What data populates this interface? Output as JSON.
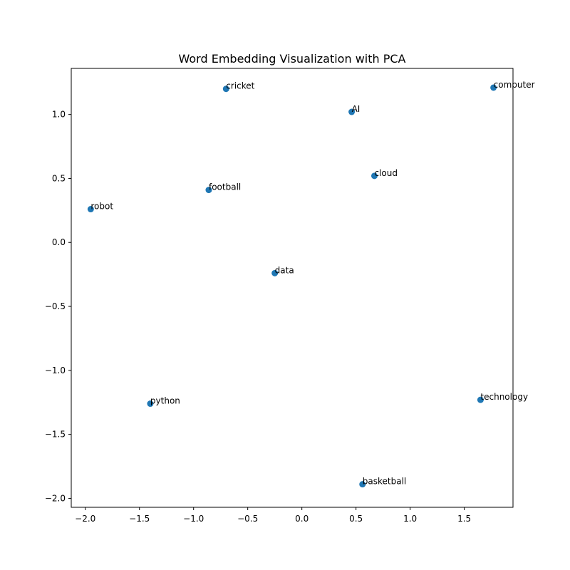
{
  "chart_data": {
    "type": "scatter",
    "title": "Word Embedding Visualization with PCA",
    "xlabel": "",
    "ylabel": "",
    "xlim": [
      -2.13,
      1.95
    ],
    "ylim": [
      -2.07,
      1.36
    ],
    "grid": false,
    "marker_color": "#1f77b4",
    "xticks": [
      {
        "value": -2.0,
        "label": "−2.0"
      },
      {
        "value": -1.5,
        "label": "−1.5"
      },
      {
        "value": -1.0,
        "label": "−1.0"
      },
      {
        "value": -0.5,
        "label": "−0.5"
      },
      {
        "value": 0.0,
        "label": "0.0"
      },
      {
        "value": 0.5,
        "label": "0.5"
      },
      {
        "value": 1.0,
        "label": "1.0"
      },
      {
        "value": 1.5,
        "label": "1.5"
      }
    ],
    "yticks": [
      {
        "value": 1.0,
        "label": "1.0"
      },
      {
        "value": 0.5,
        "label": "0.5"
      },
      {
        "value": 0.0,
        "label": "0.0"
      },
      {
        "value": -0.5,
        "label": "−0.5"
      },
      {
        "value": -1.0,
        "label": "−1.0"
      },
      {
        "value": -1.5,
        "label": "−1.5"
      },
      {
        "value": -2.0,
        "label": "−2.0"
      }
    ],
    "points": [
      {
        "label": "cricket",
        "x": -0.7,
        "y": 1.2
      },
      {
        "label": "computer",
        "x": 1.77,
        "y": 1.21
      },
      {
        "label": "AI",
        "x": 0.46,
        "y": 1.02
      },
      {
        "label": "cloud",
        "x": 0.67,
        "y": 0.52
      },
      {
        "label": "football",
        "x": -0.86,
        "y": 0.41
      },
      {
        "label": "robot",
        "x": -1.95,
        "y": 0.26
      },
      {
        "label": "data",
        "x": -0.25,
        "y": -0.24
      },
      {
        "label": "python",
        "x": -1.4,
        "y": -1.26
      },
      {
        "label": "technology",
        "x": 1.65,
        "y": -1.23
      },
      {
        "label": "basketball",
        "x": 0.56,
        "y": -1.89
      }
    ]
  }
}
